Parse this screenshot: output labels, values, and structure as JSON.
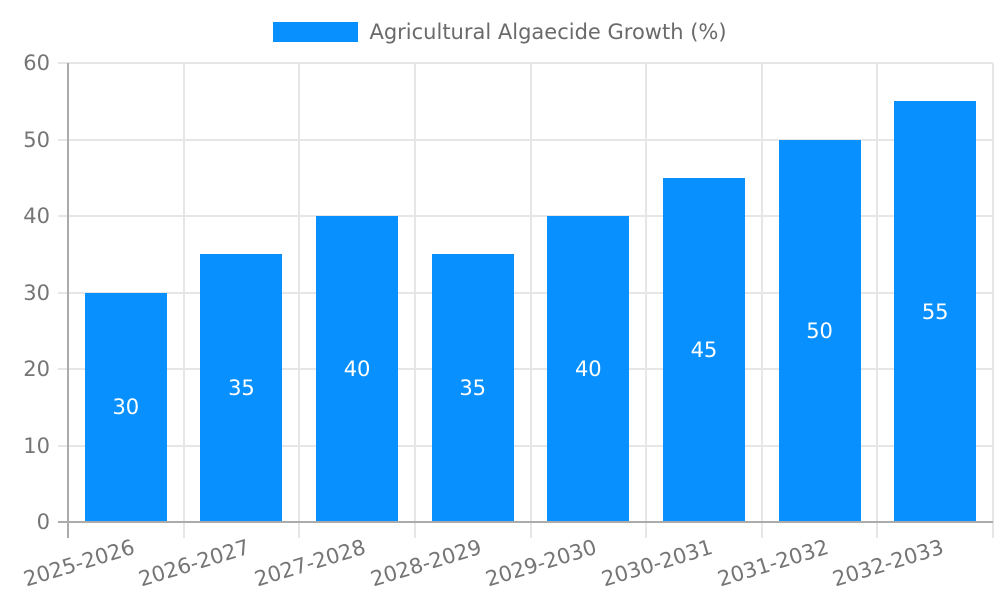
{
  "chart_data": {
    "type": "bar",
    "title": "",
    "legend": {
      "label": "Agricultural Algaecide Growth (%)",
      "position": "top"
    },
    "categories": [
      "2025-2026",
      "2026-2027",
      "2027-2028",
      "2028-2029",
      "2029-2030",
      "2030-2031",
      "2031-2032",
      "2032-2033"
    ],
    "series": [
      {
        "name": "Agricultural Algaecide Growth (%)",
        "values": [
          30,
          35,
          40,
          35,
          40,
          45,
          50,
          55
        ]
      }
    ],
    "bar_labels": [
      "30",
      "35",
      "40",
      "35",
      "40",
      "45",
      "50",
      "55"
    ],
    "ylim": [
      0,
      60
    ],
    "yticks": [
      0,
      10,
      20,
      30,
      40,
      50,
      60
    ],
    "xlabel": "",
    "ylabel": "",
    "grid": "on",
    "colors": {
      "bar": "#0890ff",
      "bar_label": "#ffffff",
      "grid_line": "#e6e6e6",
      "axis_line": "#ababab",
      "tick_label": "#757575",
      "legend_text": "#6a6a6a"
    }
  }
}
